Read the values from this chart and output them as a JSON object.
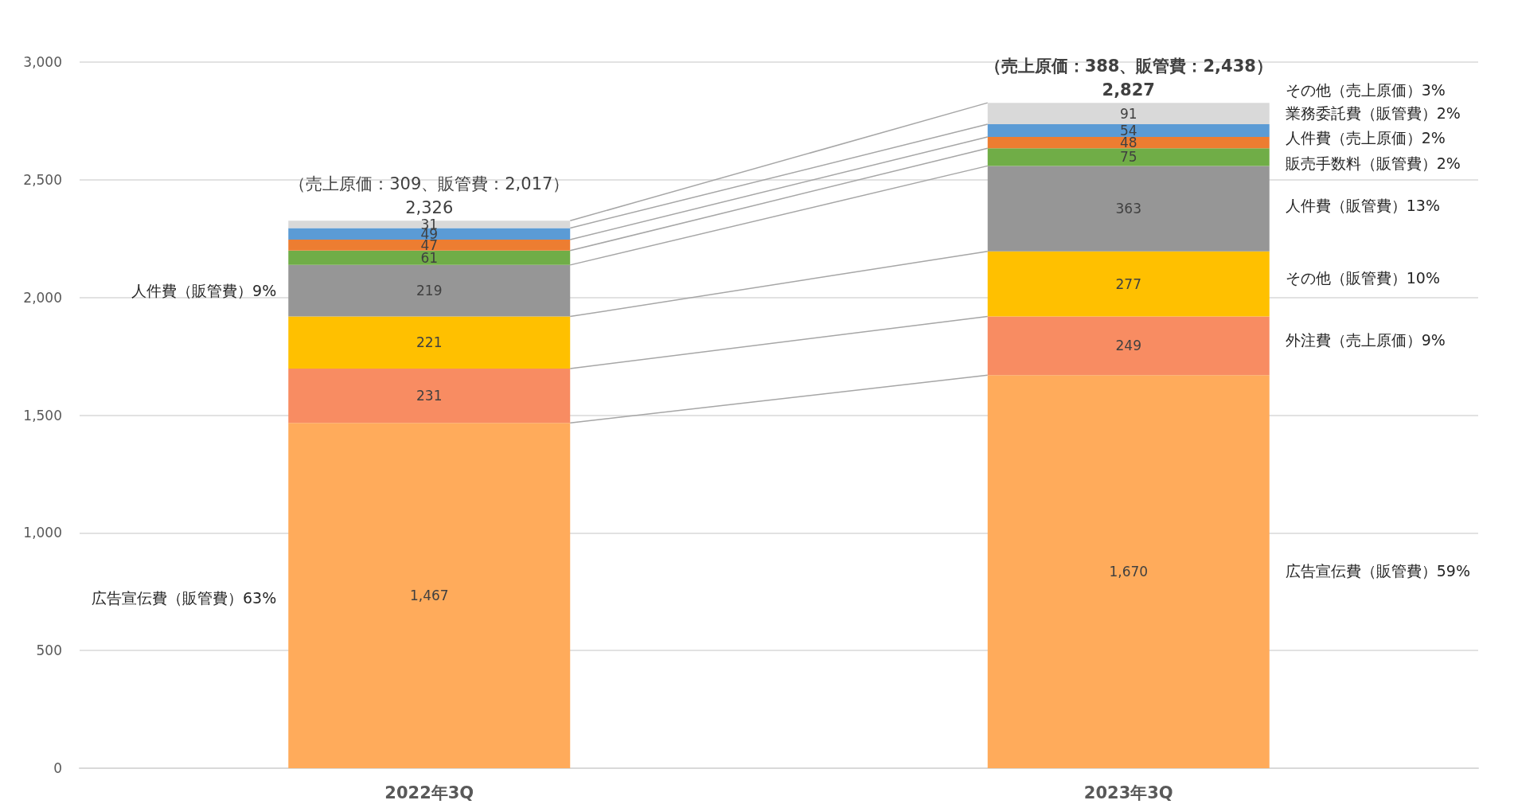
{
  "chart_data": {
    "type": "bar",
    "stacked": true,
    "categories": [
      "2022年3Q",
      "2023年3Q"
    ],
    "series": [
      {
        "color": "#ffab5b",
        "values": [
          1467,
          1670
        ],
        "value_labels": [
          "1,467",
          "1,670"
        ]
      },
      {
        "color": "#f88c62",
        "values": [
          231,
          249
        ]
      },
      {
        "color": "#ffc000",
        "values": [
          221,
          277
        ]
      },
      {
        "color": "#969696",
        "values": [
          219,
          363
        ]
      },
      {
        "color": "#70ad47",
        "values": [
          61,
          75
        ]
      },
      {
        "color": "#ed7d31",
        "values": [
          47,
          48
        ]
      },
      {
        "color": "#5b9bd5",
        "values": [
          49,
          54
        ]
      },
      {
        "color": "#d9d9d9",
        "values": [
          31,
          91
        ]
      }
    ],
    "data_labels": true,
    "totals": [
      "2,326",
      "2,827"
    ],
    "ylim": [
      0,
      3000
    ],
    "yticks": [
      0,
      {
        "value": 500,
        "label": "500"
      },
      {
        "value": 1000,
        "label": "1,000"
      },
      {
        "value": 1500,
        "label": "1,500"
      },
      {
        "value": 2000,
        "label": "2,000"
      },
      {
        "value": 2500,
        "label": "2,500"
      },
      {
        "value": 3000,
        "label": "3,000"
      }
    ],
    "grid": "y",
    "annotations": [
      "人件費（販管費）9%",
      "広告宣伝費（販管費）63%",
      "その他（売上原価）3%",
      "業務委託費（販管費）2%",
      "人件費（売上原価）2%",
      "販売手数料（販管費）2%",
      "人件費（販管費）13%",
      "その他（販管費）10%",
      "外注費（売上原価）9%",
      "広告宣伝費（販管費）59%",
      "（売上原価：309、販管費：2,017）",
      "（売上原価：388、販管費：2,438）"
    ]
  }
}
